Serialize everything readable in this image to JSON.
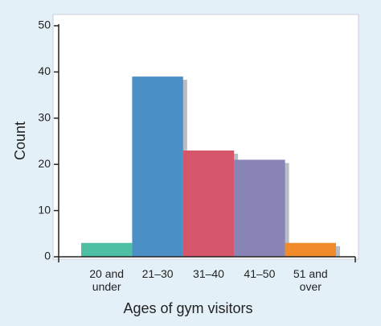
{
  "chart_data": {
    "type": "bar",
    "x_label": "Ages of gym visitors",
    "y_label": "Count",
    "categories": [
      "20 and under",
      "21–30",
      "31–40",
      "41–50",
      "51 and over"
    ],
    "values": [
      3,
      39,
      23,
      21,
      3
    ],
    "colors": [
      "#4fbfa3",
      "#4a8fc6",
      "#d5566b",
      "#8884b6",
      "#f08a2a"
    ],
    "ylim": [
      0,
      50
    ],
    "yticks": [
      0,
      10,
      20,
      30,
      40,
      50
    ]
  }
}
